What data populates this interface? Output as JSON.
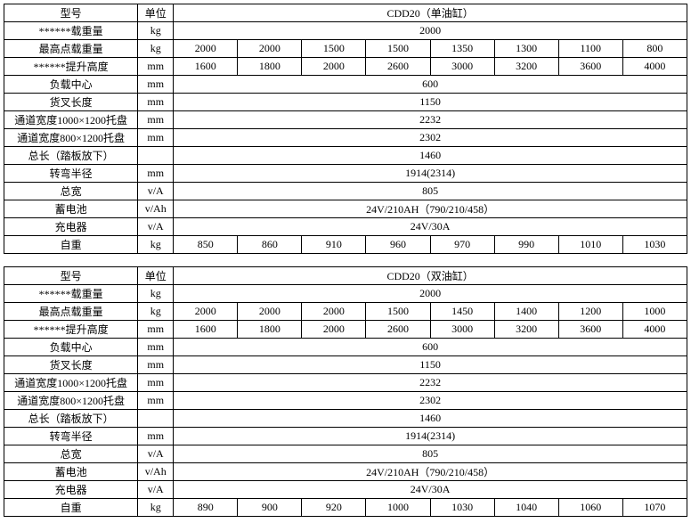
{
  "table1": {
    "model_label": "型号",
    "model_value": "CDD20（单油缸）",
    "unit_header": "单位",
    "rows": [
      {
        "label": "******载重量",
        "unit": "kg",
        "span": true,
        "value": "2000"
      },
      {
        "label": "最高点载重量",
        "unit": "kg",
        "cells": [
          "2000",
          "2000",
          "1500",
          "1500",
          "1350",
          "1300",
          "1100",
          "800"
        ]
      },
      {
        "label": "******提升高度",
        "unit": "mm",
        "cells": [
          "1600",
          "1800",
          "2000",
          "2600",
          "3000",
          "3200",
          "3600",
          "4000"
        ]
      },
      {
        "label": "负载中心",
        "unit": "mm",
        "span": true,
        "value": "600"
      },
      {
        "label": "货叉长度",
        "unit": "mm",
        "span": true,
        "value": "1150"
      },
      {
        "label": "通道宽度1000×1200托盘",
        "unit": "mm",
        "span": true,
        "value": "2232"
      },
      {
        "label": "通道宽度800×1200托盘",
        "unit": "mm",
        "span": true,
        "value": "2302"
      },
      {
        "label": "总长（踏板放下）",
        "unit": "",
        "span": true,
        "value": "1460"
      },
      {
        "label": "转弯半径",
        "unit": "mm",
        "span": true,
        "value": "1914(2314)"
      },
      {
        "label": "总宽",
        "unit": "v/A",
        "span": true,
        "value": "805"
      },
      {
        "label": "蓄电池",
        "unit": "v/Ah",
        "span": true,
        "value": "24V/210AH（790/210/458）"
      },
      {
        "label": "充电器",
        "unit": "v/A",
        "span": true,
        "value": "24V/30A"
      },
      {
        "label": "自重",
        "unit": "kg",
        "cells": [
          "850",
          "860",
          "910",
          "960",
          "970",
          "990",
          "1010",
          "1030"
        ]
      }
    ]
  },
  "table2": {
    "model_label": "型号",
    "model_value": "CDD20（双油缸）",
    "unit_header": "单位",
    "rows": [
      {
        "label": "******载重量",
        "unit": "kg",
        "span": true,
        "value": "2000"
      },
      {
        "label": "最高点载重量",
        "unit": "kg",
        "cells": [
          "2000",
          "2000",
          "2000",
          "1500",
          "1450",
          "1400",
          "1200",
          "1000"
        ]
      },
      {
        "label": "******提升高度",
        "unit": "mm",
        "cells": [
          "1600",
          "1800",
          "2000",
          "2600",
          "3000",
          "3200",
          "3600",
          "4000"
        ]
      },
      {
        "label": "负载中心",
        "unit": "mm",
        "span": true,
        "value": "600"
      },
      {
        "label": "货叉长度",
        "unit": "mm",
        "span": true,
        "value": "1150"
      },
      {
        "label": "通道宽度1000×1200托盘",
        "unit": "mm",
        "span": true,
        "value": "2232"
      },
      {
        "label": "通道宽度800×1200托盘",
        "unit": "mm",
        "span": true,
        "value": "2302"
      },
      {
        "label": "总长（踏板放下）",
        "unit": "",
        "span": true,
        "value": "1460"
      },
      {
        "label": "转弯半径",
        "unit": "mm",
        "span": true,
        "value": "1914(2314)"
      },
      {
        "label": "总宽",
        "unit": "v/A",
        "span": true,
        "value": "805"
      },
      {
        "label": "蓄电池",
        "unit": "v/Ah",
        "span": true,
        "value": "24V/210AH（790/210/458）"
      },
      {
        "label": "充电器",
        "unit": "v/A",
        "span": true,
        "value": "24V/30A"
      },
      {
        "label": "自重",
        "unit": "kg",
        "cells": [
          "890",
          "900",
          "920",
          "1000",
          "1030",
          "1040",
          "1060",
          "1070"
        ]
      }
    ]
  }
}
